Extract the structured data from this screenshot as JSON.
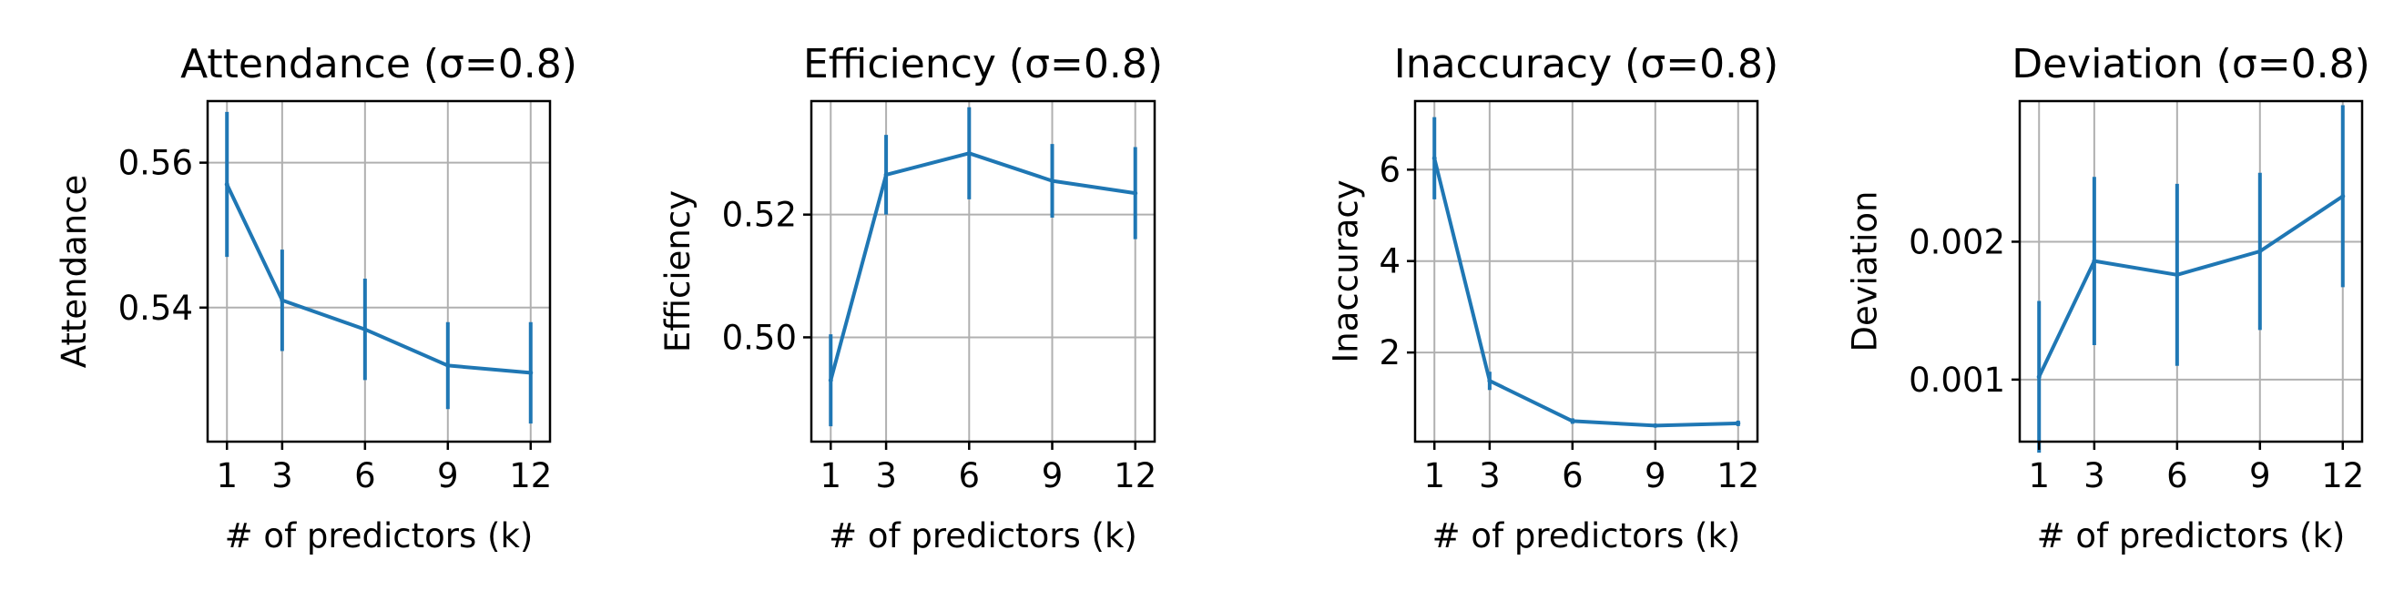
{
  "colors": {
    "series": "#1f77b4",
    "grid": "#b0b0b0",
    "axes": "#000000"
  },
  "chart_data": [
    {
      "type": "line",
      "title": "Attendance (σ=0.8)",
      "xlabel": "# of predictors (k)",
      "ylabel": "Attendance",
      "x": [
        1,
        3,
        6,
        9,
        12
      ],
      "xticks": [
        1,
        3,
        6,
        9,
        12
      ],
      "xlim": [
        0.3,
        12.7
      ],
      "ylim": [
        0.5215,
        0.5685
      ],
      "yticks": [
        0.54,
        0.56
      ],
      "ytick_labels": [
        "0.54",
        "0.56"
      ],
      "grid": true,
      "series": [
        {
          "values": [
            0.557,
            0.541,
            0.537,
            0.532,
            0.531
          ],
          "errors": [
            0.01,
            0.007,
            0.007,
            0.006,
            0.007
          ]
        }
      ]
    },
    {
      "type": "line",
      "title": "Efficiency (σ=0.8)",
      "xlabel": "# of predictors (k)",
      "ylabel": "Efficiency",
      "x": [
        1,
        3,
        6,
        9,
        12
      ],
      "xticks": [
        1,
        3,
        6,
        9,
        12
      ],
      "xlim": [
        0.3,
        12.7
      ],
      "ylim": [
        0.483,
        0.5385
      ],
      "yticks": [
        0.5,
        0.52
      ],
      "ytick_labels": [
        "0.50",
        "0.52"
      ],
      "grid": true,
      "series": [
        {
          "values": [
            0.493,
            0.5265,
            0.53,
            0.5255,
            0.5235
          ],
          "errors": [
            0.0075,
            0.0065,
            0.0075,
            0.006,
            0.0075
          ]
        }
      ]
    },
    {
      "type": "line",
      "title": "Inaccuracy (σ=0.8)",
      "xlabel": "# of predictors (k)",
      "ylabel": "Inaccuracy",
      "x": [
        1,
        3,
        6,
        9,
        12
      ],
      "xticks": [
        1,
        3,
        6,
        9,
        12
      ],
      "xlim": [
        0.3,
        12.7
      ],
      "ylim": [
        0.05,
        7.5
      ],
      "yticks": [
        2,
        4,
        6
      ],
      "ytick_labels": [
        "2",
        "4",
        "6"
      ],
      "grid": true,
      "series": [
        {
          "values": [
            6.25,
            1.38,
            0.5,
            0.4,
            0.45
          ],
          "errors": [
            0.9,
            0.2,
            0.06,
            0.04,
            0.06
          ]
        }
      ]
    },
    {
      "type": "line",
      "title": "Deviation (σ=0.8)",
      "xlabel": "# of predictors (k)",
      "ylabel": "Deviation",
      "x": [
        1,
        3,
        6,
        9,
        12
      ],
      "xticks": [
        1,
        3,
        6,
        9,
        12
      ],
      "xlim": [
        0.3,
        12.7
      ],
      "ylim": [
        0.00055,
        0.00302
      ],
      "yticks": [
        0.001,
        0.002
      ],
      "ytick_labels": [
        "0.001",
        "0.002"
      ],
      "grid": true,
      "series": [
        {
          "values": [
            0.00102,
            0.00186,
            0.00176,
            0.00193,
            0.00233
          ],
          "errors": [
            0.00055,
            0.00061,
            0.00066,
            0.00057,
            0.00066
          ]
        }
      ]
    }
  ]
}
